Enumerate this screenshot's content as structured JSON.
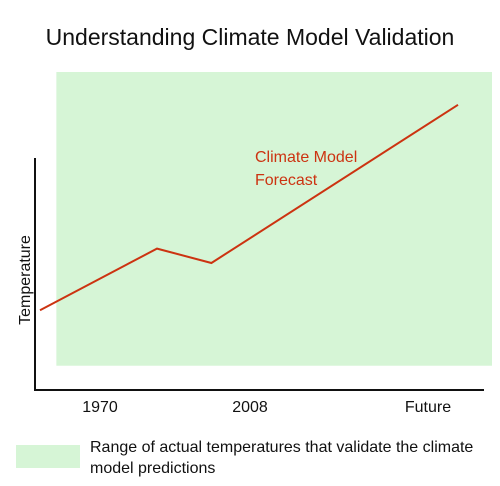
{
  "colors": {
    "band": "#d6f5d6",
    "line": "#cc3311",
    "axis": "#111111"
  },
  "chart_data": {
    "type": "line",
    "title": "Understanding Climate Model Validation",
    "ylabel": "Temperature",
    "xlabel": "",
    "x_tick_labels": [
      "1970",
      "2008",
      "Future"
    ],
    "series": [
      {
        "name": "Climate Model Forecast",
        "x": [
          0,
          0.28,
          0.41,
          1.0
        ],
        "y": [
          0.27,
          0.57,
          0.5,
          1.27
        ]
      }
    ],
    "band": {
      "label": "Range of actual temperatures that validate the climate model predictions",
      "x_range": [
        0.02,
        1.0
      ],
      "y_range": [
        0.0,
        1.5
      ]
    },
    "xlim": [
      0,
      1.0
    ],
    "ylim": [
      -0.05,
      1.05
    ],
    "grid": false,
    "legend": "bottom"
  }
}
